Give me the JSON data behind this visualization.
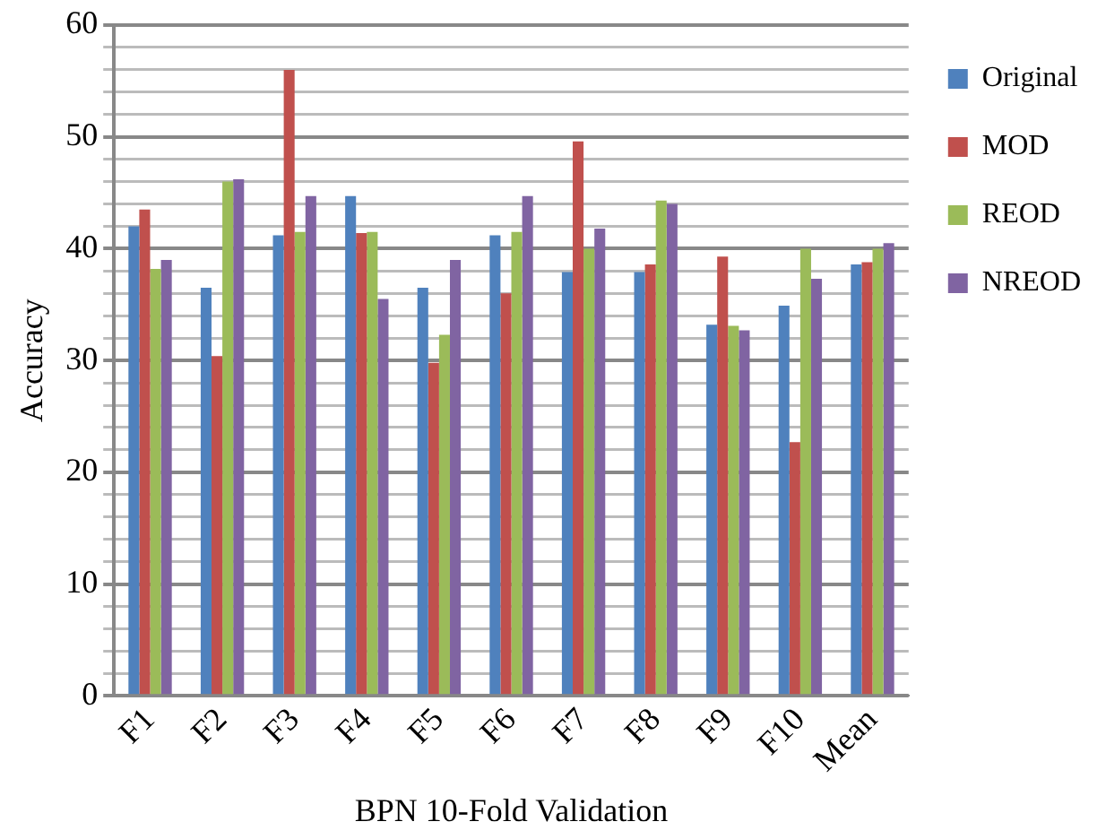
{
  "chart_data": {
    "type": "bar",
    "xlabel": "BPN 10-Fold Validation",
    "ylabel": "Accuracy",
    "categories": [
      "F1",
      "F2",
      "F3",
      "F4",
      "F5",
      "F6",
      "F7",
      "F8",
      "F9",
      "F10",
      "Mean"
    ],
    "series": [
      {
        "name": "Original",
        "color": "#4f81bd",
        "values": [
          42,
          36.5,
          41.2,
          44.7,
          36.5,
          41.2,
          37.9,
          37.9,
          33.2,
          34.9,
          38.6
        ]
      },
      {
        "name": "MOD",
        "color": "#c0504d",
        "values": [
          43.5,
          30.4,
          56,
          41.4,
          29.8,
          36,
          49.6,
          38.6,
          39.3,
          22.7,
          38.8
        ]
      },
      {
        "name": "REOD",
        "color": "#9bbb59",
        "values": [
          38.2,
          46,
          41.5,
          41.5,
          32.3,
          41.5,
          40,
          44.3,
          33.1,
          40,
          40
        ]
      },
      {
        "name": "NREOD",
        "color": "#8064a2",
        "values": [
          39,
          46.2,
          44.7,
          35.5,
          39,
          44.7,
          41.8,
          44,
          32.7,
          37.3,
          40.5
        ]
      }
    ],
    "ylim": [
      0,
      60
    ],
    "yticks": [
      0,
      {
        "value": 2,
        "label": null
      },
      {
        "value": 4,
        "label": null
      },
      {
        "value": 6,
        "label": null
      },
      {
        "value": 8,
        "label": null
      },
      10,
      {
        "value": 12,
        "label": null
      },
      {
        "value": 14,
        "label": null
      },
      {
        "value": 16,
        "label": null
      },
      {
        "value": 18,
        "label": null
      },
      20,
      {
        "value": 22,
        "label": null
      },
      {
        "value": 24,
        "label": null
      },
      {
        "value": 26,
        "label": null
      },
      {
        "value": 28,
        "label": null
      },
      30,
      {
        "value": 32,
        "label": null
      },
      {
        "value": 34,
        "label": null
      },
      {
        "value": 36,
        "label": null
      },
      {
        "value": 38,
        "label": null
      },
      40,
      {
        "value": 42,
        "label": null
      },
      {
        "value": 44,
        "label": null
      },
      {
        "value": 46,
        "label": null
      },
      {
        "value": 48,
        "label": null
      },
      50,
      {
        "value": 52,
        "label": null
      },
      {
        "value": 54,
        "label": null
      },
      {
        "value": 56,
        "label": null
      },
      {
        "value": 58,
        "label": null
      },
      60
    ],
    "grid": "y",
    "legend": "right"
  }
}
